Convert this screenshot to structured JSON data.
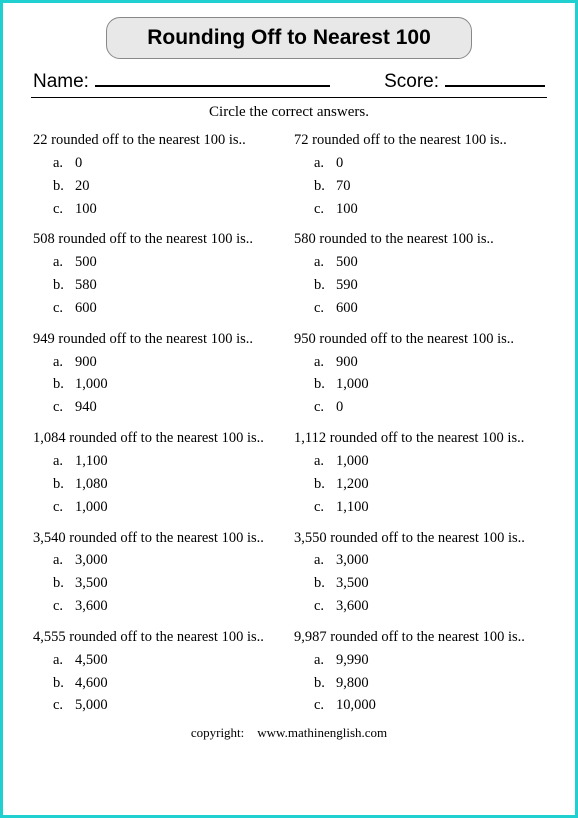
{
  "title": "Rounding Off to Nearest 100",
  "name_label": "Name:",
  "score_label": "Score:",
  "instructions": "Circle the correct answers.",
  "copyright_label": "copyright:",
  "copyright_site": "www.mathinenglish.com",
  "questions": [
    {
      "text": "22 rounded off to the nearest 100 is..",
      "a": "0",
      "b": "20",
      "c": "100"
    },
    {
      "text": "72 rounded off to the nearest 100 is..",
      "a": "0",
      "b": "70",
      "c": "100"
    },
    {
      "text": "508 rounded off to the nearest 100 is..",
      "a": "500",
      "b": "580",
      "c": "600"
    },
    {
      "text": "580 rounded to the nearest 100 is..",
      "a": "500",
      "b": "590",
      "c": "600"
    },
    {
      "text": "949 rounded off to the nearest 100 is..",
      "a": "900",
      "b": "1,000",
      "c": "940"
    },
    {
      "text": "950 rounded off to the nearest 100 is..",
      "a": "900",
      "b": "1,000",
      "c": "0"
    },
    {
      "text": "1,084 rounded off to the nearest 100 is..",
      "a": "1,100",
      "b": "1,080",
      "c": "1,000"
    },
    {
      "text": "1,112 rounded off to the nearest 100 is..",
      "a": "1,000",
      "b": "1,200",
      "c": "1,100"
    },
    {
      "text": "3,540 rounded off to the nearest 100 is..",
      "a": "3,000",
      "b": "3,500",
      "c": "3,600"
    },
    {
      "text": "3,550 rounded off to the nearest 100 is..",
      "a": "3,000",
      "b": "3,500",
      "c": "3,600"
    },
    {
      "text": "4,555 rounded off to the nearest 100 is..",
      "a": "4,500",
      "b": "4,600",
      "c": "5,000"
    },
    {
      "text": "9,987 rounded off to the nearest 100 is..",
      "a": "9,990",
      "b": "9,800",
      "c": "10,000"
    }
  ],
  "option_letters": {
    "a": "a.",
    "b": "b.",
    "c": "c."
  }
}
